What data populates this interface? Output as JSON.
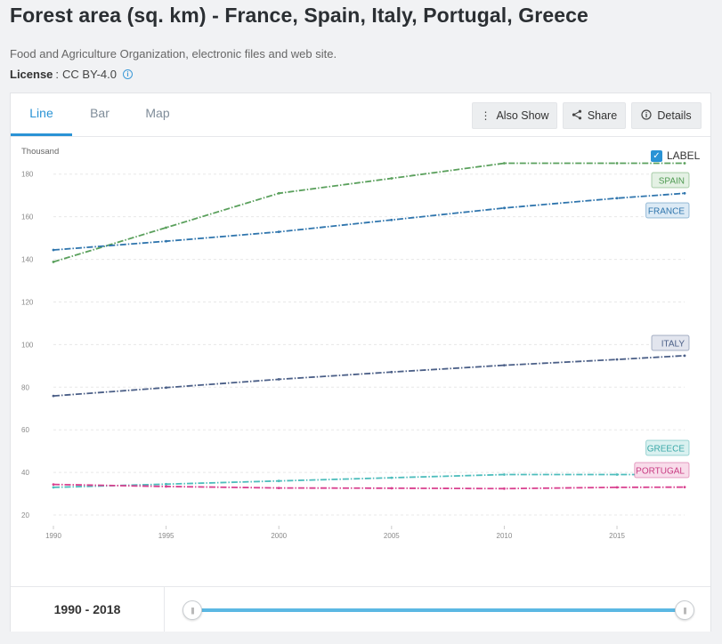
{
  "header": {
    "title": "Forest area (sq. km) - France, Spain, Italy, Portugal, Greece",
    "source": "Food and Agriculture Organization, electronic files and web site.",
    "license_label": "License",
    "license_value": "CC BY-4.0"
  },
  "tabs": [
    {
      "label": "Line"
    },
    {
      "label": "Bar"
    },
    {
      "label": "Map"
    }
  ],
  "toolbar": {
    "also_show": "Also Show",
    "share": "Share",
    "details": "Details"
  },
  "label_toggle": "LABEL",
  "range": {
    "text": "1990 - 2018",
    "start_year": 1990,
    "end_year": 2018
  },
  "chart_data": {
    "type": "line",
    "unit": "Thousand",
    "x": [
      1990,
      1995,
      2000,
      2005,
      2010,
      2015,
      2018
    ],
    "xticks": [
      1990,
      1995,
      2000,
      2005,
      2010,
      2015
    ],
    "yticks": [
      20,
      40,
      60,
      80,
      100,
      120,
      140,
      160,
      180
    ],
    "ylim": [
      15,
      192
    ],
    "xlim": [
      1990,
      2018
    ],
    "grid": true,
    "series": [
      {
        "name": "SPAIN",
        "color": "#5aa05c",
        "tagBg": "#e4f1e4",
        "tagColor": "#4f9a52",
        "values": [
          138.8,
          154.9,
          171.0,
          178.0,
          185.1,
          185.1,
          185.1
        ]
      },
      {
        "name": "FRANCE",
        "color": "#2f75ad",
        "tagBg": "#dceaf5",
        "tagColor": "#2f75ad",
        "values": [
          144.4,
          148.5,
          152.9,
          158.5,
          164.1,
          168.7,
          171.0
        ]
      },
      {
        "name": "ITALY",
        "color": "#4b5f87",
        "tagBg": "#e2e5ee",
        "tagColor": "#4b5f87",
        "values": [
          75.9,
          79.8,
          83.7,
          87.1,
          90.3,
          93.0,
          94.8
        ]
      },
      {
        "name": "GREECE",
        "color": "#4dbdbc",
        "tagBg": "#daf1f0",
        "tagColor": "#3aa8a7",
        "values": [
          32.99,
          34.5,
          36.0,
          37.5,
          39.0,
          39.0,
          39.0
        ]
      },
      {
        "name": "PORTUGAL",
        "color": "#d9408f",
        "tagBg": "#f8dcea",
        "tagColor": "#c93d84",
        "values": [
          34.36,
          33.4,
          32.7,
          32.6,
          32.4,
          33.0,
          33.1
        ]
      }
    ]
  }
}
